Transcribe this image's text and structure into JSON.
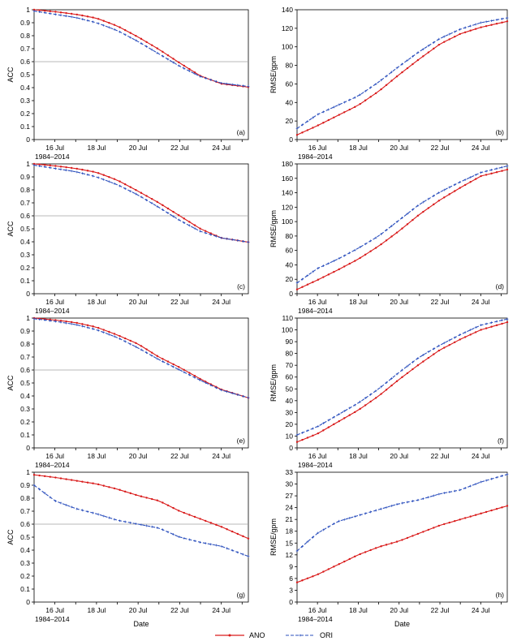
{
  "chart_data": [
    {
      "panel": "(a)",
      "type": "line",
      "ylabel": "ACC",
      "ylim": [
        0,
        1.0
      ],
      "yticks": [
        0,
        0.1,
        0.2,
        0.3,
        0.4,
        0.5,
        0.6,
        0.7,
        0.8,
        0.9,
        1.0
      ],
      "hline": 0.6,
      "series": [
        {
          "name": "ANO",
          "anchors": [
            [
              15,
              1.0
            ],
            [
              16,
              0.985
            ],
            [
              17,
              0.965
            ],
            [
              18,
              0.935
            ],
            [
              19,
              0.875
            ],
            [
              20,
              0.79
            ],
            [
              21,
              0.695
            ],
            [
              22,
              0.59
            ],
            [
              23,
              0.49
            ],
            [
              24,
              0.43
            ],
            [
              25,
              0.41
            ]
          ]
        },
        {
          "name": "ORI",
          "anchors": [
            [
              15,
              0.99
            ],
            [
              16,
              0.965
            ],
            [
              17,
              0.94
            ],
            [
              18,
              0.9
            ],
            [
              19,
              0.84
            ],
            [
              20,
              0.755
            ],
            [
              21,
              0.66
            ],
            [
              22,
              0.565
            ],
            [
              23,
              0.485
            ],
            [
              24,
              0.435
            ],
            [
              25,
              0.415
            ]
          ]
        }
      ]
    },
    {
      "panel": "(b)",
      "type": "line",
      "ylabel": "RMSE/gpm",
      "ylim": [
        0,
        140
      ],
      "yticks": [
        0,
        20,
        40,
        60,
        80,
        100,
        120,
        140
      ],
      "series": [
        {
          "name": "ANO",
          "anchors": [
            [
              15,
              5
            ],
            [
              16,
              15
            ],
            [
              17,
              26
            ],
            [
              18,
              37
            ],
            [
              19,
              52
            ],
            [
              20,
              70
            ],
            [
              21,
              87
            ],
            [
              22,
              103
            ],
            [
              23,
              114
            ],
            [
              24,
              121
            ],
            [
              25,
              126
            ]
          ]
        },
        {
          "name": "ORI",
          "anchors": [
            [
              15,
              12
            ],
            [
              16,
              27
            ],
            [
              17,
              37
            ],
            [
              18,
              47
            ],
            [
              19,
              62
            ],
            [
              20,
              79
            ],
            [
              21,
              95
            ],
            [
              22,
              109
            ],
            [
              23,
              119
            ],
            [
              24,
              126
            ],
            [
              25,
              130
            ]
          ]
        }
      ]
    },
    {
      "panel": "(c)",
      "type": "line",
      "ylabel": "ACC",
      "ylim": [
        0,
        1.0
      ],
      "yticks": [
        0,
        0.1,
        0.2,
        0.3,
        0.4,
        0.5,
        0.6,
        0.7,
        0.8,
        0.9,
        1.0
      ],
      "hline": 0.6,
      "series": [
        {
          "name": "ANO",
          "anchors": [
            [
              15,
              1.0
            ],
            [
              16,
              0.985
            ],
            [
              17,
              0.965
            ],
            [
              18,
              0.935
            ],
            [
              19,
              0.875
            ],
            [
              20,
              0.79
            ],
            [
              21,
              0.7
            ],
            [
              22,
              0.6
            ],
            [
              23,
              0.5
            ],
            [
              24,
              0.43
            ],
            [
              25,
              0.405
            ]
          ]
        },
        {
          "name": "ORI",
          "anchors": [
            [
              15,
              0.99
            ],
            [
              16,
              0.965
            ],
            [
              17,
              0.94
            ],
            [
              18,
              0.9
            ],
            [
              19,
              0.84
            ],
            [
              20,
              0.76
            ],
            [
              21,
              0.665
            ],
            [
              22,
              0.565
            ],
            [
              23,
              0.48
            ],
            [
              24,
              0.43
            ],
            [
              25,
              0.405
            ]
          ]
        }
      ]
    },
    {
      "panel": "(d)",
      "type": "line",
      "ylabel": "RMSE/gpm",
      "ylim": [
        0,
        180
      ],
      "yticks": [
        0,
        20,
        40,
        60,
        80,
        100,
        120,
        140,
        160,
        180
      ],
      "series": [
        {
          "name": "ANO",
          "anchors": [
            [
              15,
              6
            ],
            [
              16,
              19
            ],
            [
              17,
              33
            ],
            [
              18,
              48
            ],
            [
              19,
              66
            ],
            [
              20,
              87
            ],
            [
              21,
              110
            ],
            [
              22,
              130
            ],
            [
              23,
              147
            ],
            [
              24,
              163
            ],
            [
              25,
              170
            ]
          ]
        },
        {
          "name": "ORI",
          "anchors": [
            [
              15,
              15
            ],
            [
              16,
              35
            ],
            [
              17,
              48
            ],
            [
              18,
              63
            ],
            [
              19,
              80
            ],
            [
              20,
              102
            ],
            [
              21,
              124
            ],
            [
              22,
              141
            ],
            [
              23,
              155
            ],
            [
              24,
              168
            ],
            [
              25,
              175
            ]
          ]
        }
      ]
    },
    {
      "panel": "(e)",
      "type": "line",
      "ylabel": "ACC",
      "ylim": [
        0,
        1.0
      ],
      "yticks": [
        0,
        0.1,
        0.2,
        0.3,
        0.4,
        0.5,
        0.6,
        0.7,
        0.8,
        0.9,
        1.0
      ],
      "hline": 0.6,
      "series": [
        {
          "name": "ANO",
          "anchors": [
            [
              15,
              1.0
            ],
            [
              16,
              0.985
            ],
            [
              17,
              0.965
            ],
            [
              18,
              0.93
            ],
            [
              19,
              0.87
            ],
            [
              20,
              0.8
            ],
            [
              21,
              0.7
            ],
            [
              22,
              0.62
            ],
            [
              23,
              0.53
            ],
            [
              24,
              0.45
            ],
            [
              25,
              0.4
            ]
          ]
        },
        {
          "name": "ORI",
          "anchors": [
            [
              15,
              0.995
            ],
            [
              16,
              0.975
            ],
            [
              17,
              0.95
            ],
            [
              18,
              0.91
            ],
            [
              19,
              0.85
            ],
            [
              20,
              0.77
            ],
            [
              21,
              0.68
            ],
            [
              22,
              0.6
            ],
            [
              23,
              0.52
            ],
            [
              24,
              0.445
            ],
            [
              25,
              0.4
            ]
          ]
        }
      ]
    },
    {
      "panel": "(f)",
      "type": "line",
      "ylabel": "RMSE/gpm",
      "ylim": [
        0,
        110
      ],
      "yticks": [
        0,
        10,
        20,
        30,
        40,
        50,
        60,
        70,
        80,
        90,
        100,
        110
      ],
      "series": [
        {
          "name": "ANO",
          "anchors": [
            [
              15,
              5
            ],
            [
              16,
              12
            ],
            [
              17,
              22
            ],
            [
              18,
              32
            ],
            [
              19,
              44
            ],
            [
              20,
              58
            ],
            [
              21,
              71
            ],
            [
              22,
              83
            ],
            [
              23,
              92
            ],
            [
              24,
              100
            ],
            [
              25,
              105
            ]
          ]
        },
        {
          "name": "ORI",
          "anchors": [
            [
              15,
              11
            ],
            [
              16,
              18
            ],
            [
              17,
              28
            ],
            [
              18,
              38
            ],
            [
              19,
              50
            ],
            [
              20,
              64
            ],
            [
              21,
              77
            ],
            [
              22,
              87
            ],
            [
              23,
              96
            ],
            [
              24,
              104
            ],
            [
              25,
              108
            ]
          ]
        }
      ]
    },
    {
      "panel": "(g)",
      "type": "line",
      "ylabel": "ACC",
      "ylim": [
        0,
        1.0
      ],
      "yticks": [
        0,
        0.1,
        0.2,
        0.3,
        0.4,
        0.5,
        0.6,
        0.7,
        0.8,
        0.9,
        1.0
      ],
      "hline": 0.6,
      "series": [
        {
          "name": "ANO",
          "anchors": [
            [
              15,
              0.98
            ],
            [
              16,
              0.96
            ],
            [
              17,
              0.935
            ],
            [
              18,
              0.91
            ],
            [
              19,
              0.87
            ],
            [
              20,
              0.82
            ],
            [
              21,
              0.78
            ],
            [
              22,
              0.7
            ],
            [
              23,
              0.64
            ],
            [
              24,
              0.58
            ],
            [
              25,
              0.51
            ]
          ]
        },
        {
          "name": "ORI",
          "anchors": [
            [
              15,
              0.9
            ],
            [
              16,
              0.78
            ],
            [
              17,
              0.72
            ],
            [
              18,
              0.68
            ],
            [
              19,
              0.63
            ],
            [
              20,
              0.6
            ],
            [
              21,
              0.57
            ],
            [
              22,
              0.5
            ],
            [
              23,
              0.46
            ],
            [
              24,
              0.43
            ],
            [
              25,
              0.37
            ]
          ]
        }
      ]
    },
    {
      "panel": "(h)",
      "type": "line",
      "ylabel": "RMSE/gpm",
      "ylim": [
        0,
        33
      ],
      "yticks": [
        0,
        3,
        6,
        9,
        12,
        15,
        18,
        21,
        24,
        27,
        30,
        33
      ],
      "series": [
        {
          "name": "ANO",
          "anchors": [
            [
              15,
              5
            ],
            [
              16,
              7
            ],
            [
              17,
              9.5
            ],
            [
              18,
              12
            ],
            [
              19,
              14
            ],
            [
              20,
              15.5
            ],
            [
              21,
              17.5
            ],
            [
              22,
              19.5
            ],
            [
              23,
              21
            ],
            [
              24,
              22.5
            ],
            [
              25,
              24
            ]
          ]
        },
        {
          "name": "ORI",
          "anchors": [
            [
              15,
              13
            ],
            [
              16,
              17.5
            ],
            [
              17,
              20.5
            ],
            [
              18,
              22
            ],
            [
              19,
              23.5
            ],
            [
              20,
              25
            ],
            [
              21,
              26
            ],
            [
              22,
              27.5
            ],
            [
              23,
              28.5
            ],
            [
              24,
              30.5
            ],
            [
              25,
              32
            ]
          ]
        }
      ]
    }
  ],
  "x_axis": {
    "range": [
      15,
      25.3
    ],
    "tick_labels": [
      "16 Jul",
      "18 Jul",
      "20 Jul",
      "22 Jul",
      "24 Jul"
    ],
    "period_label": "1984‒2014",
    "xlabel": "Date"
  },
  "legend": {
    "ano_label": "ANO",
    "ori_label": "ORI"
  },
  "colors": {
    "ano": "#d91a1a",
    "ori": "#2b4fbd",
    "hline": "#a0a0a0",
    "axis": "#000000"
  }
}
